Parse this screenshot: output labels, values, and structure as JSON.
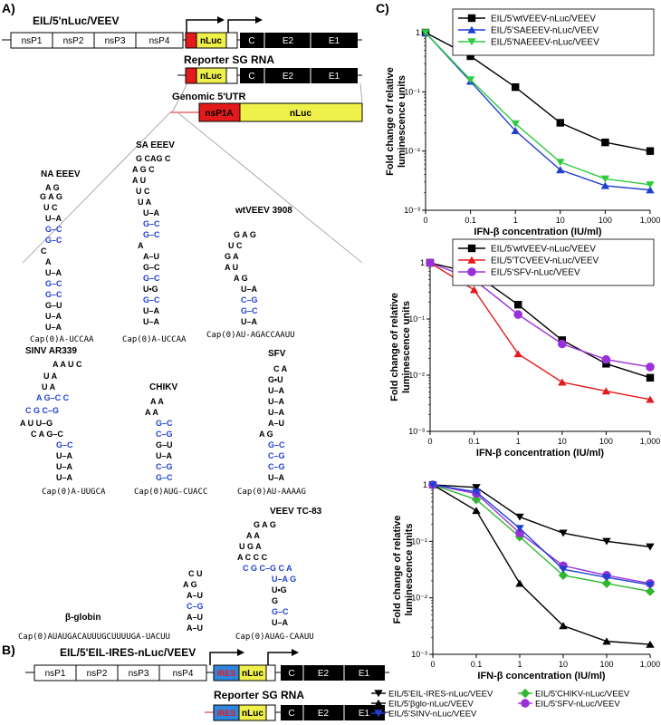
{
  "panels": {
    "a": "A)",
    "b": "B)",
    "c": "C)"
  },
  "panel_a": {
    "construct_title": "EIL/5'nLuc/VEEV",
    "genes": [
      "nsP1",
      "nsP2",
      "nsP3",
      "nsP4"
    ],
    "reporter": "nLuc",
    "structural": [
      "C",
      "E2",
      "E1"
    ],
    "sg_title": "Reporter SG RNA",
    "utr_title": "Genomic 5'UTR",
    "utr_boxes": [
      "nsP1A",
      "nLuc"
    ],
    "structures": [
      {
        "name": "NA EEEV",
        "cap": "Cap(0)A-UCCAA"
      },
      {
        "name": "SA EEEV",
        "cap": "Cap(0)A-UCCAA"
      },
      {
        "name": "wtVEEV 3908",
        "cap": "Cap(0)AU-AGACCAAUU"
      },
      {
        "name": "SINV AR339",
        "cap": "Cap(0)A-UUGCA"
      },
      {
        "name": "CHIKV",
        "cap": "Cap(0)AUG-CUACC"
      },
      {
        "name": "SFV",
        "cap": "Cap(0)AU-AAAAG"
      },
      {
        "name": "VEEV TC-83",
        "cap": "Cap(0)AUAG-CAAUU"
      },
      {
        "name": "β-globin",
        "cap": "Cap(0)AUAUGACAUUUGCUUUUGA-UACUU"
      }
    ]
  },
  "panel_b": {
    "construct_title": "EIL/5'EIL-IRES-nLuc/VEEV",
    "genes": [
      "nsP1",
      "nsP2",
      "nsP3",
      "nsP4"
    ],
    "ires": "IRES",
    "reporter": "nLuc",
    "structural": [
      "C",
      "E2",
      "E1"
    ],
    "sg_title": "Reporter SG RNA"
  },
  "colors": {
    "nsp_red": "#e31a1c",
    "nluc_yellow": "#f0f04a",
    "ires_blue": "#2e86de",
    "black": "#000000"
  },
  "chart_data": [
    {
      "type": "line",
      "ylabel": "Fold change of relative luminescence units",
      "xlabel": "IFN-β concentration (IU/ml)",
      "categories": [
        "0",
        "0.1",
        "1",
        "10",
        "100",
        "1,000"
      ],
      "y_scale": "log",
      "ylim": [
        0.001,
        1
      ],
      "y_ticks": [
        "1",
        "10⁻¹",
        "10⁻²",
        "10⁻³"
      ],
      "legend": "top-right",
      "series": [
        {
          "name": "EIL/5'wtVEEV-nLuc/VEEV",
          "color": "#000000",
          "marker": "square",
          "values": [
            1,
            0.4,
            0.12,
            0.03,
            0.014,
            0.01
          ]
        },
        {
          "name": "EIL/5'SAEEEV-nLuc/VEEV",
          "color": "#1f3fd1",
          "marker": "triangle-up",
          "values": [
            1,
            0.15,
            0.022,
            0.0048,
            0.0026,
            0.0022
          ]
        },
        {
          "name": "EIL/5'NAEEEV-nLuc/VEEV",
          "color": "#2ecc40",
          "marker": "triangle-down",
          "values": [
            1,
            0.16,
            0.029,
            0.0065,
            0.0034,
            0.0027
          ]
        }
      ]
    },
    {
      "type": "line",
      "ylabel": "Fold change of relative luminescence units",
      "xlabel": "IFN-β concentration (IU/ml)",
      "categories": [
        "0",
        "0.1",
        "1",
        "10",
        "100",
        "1,000"
      ],
      "y_scale": "log",
      "ylim": [
        0.001,
        1
      ],
      "y_ticks": [
        "1",
        "10⁻¹",
        "10⁻²",
        "10⁻³"
      ],
      "legend": "top-right",
      "series": [
        {
          "name": "EIL/5'wtVEEV-nLuc/VEEV",
          "color": "#000000",
          "marker": "square",
          "values": [
            1,
            0.65,
            0.18,
            0.042,
            0.016,
            0.009
          ]
        },
        {
          "name": "EIL/5'TCVEEV-nLuc/VEEV",
          "color": "#e31a1c",
          "marker": "triangle-up",
          "values": [
            1,
            0.33,
            0.024,
            0.0075,
            0.0052,
            0.0037
          ]
        },
        {
          "name": "EIL/5'SFV-nLuc/VEEV",
          "color": "#9b30d9",
          "marker": "circle",
          "values": [
            1,
            0.5,
            0.12,
            0.036,
            0.019,
            0.014
          ]
        }
      ]
    },
    {
      "type": "line",
      "ylabel": "Fold change of relative luminescence units",
      "xlabel": "IFN-β concentration (IU/ml)",
      "categories": [
        "0",
        "0.1",
        "1",
        "10",
        "100",
        "1,000"
      ],
      "y_scale": "log",
      "ylim": [
        0.001,
        1
      ],
      "y_ticks": [
        "1",
        "10⁻¹",
        "10⁻²",
        "10⁻³"
      ],
      "legend": "bottom",
      "series": [
        {
          "name": "EIL/5'EIL-IRES-nLuc/VEEV",
          "color": "#000000",
          "marker": "triangle-down",
          "values": [
            1,
            0.9,
            0.27,
            0.14,
            0.1,
            0.08
          ]
        },
        {
          "name": "EIL/5'CHIKV-nLuc/VEEV",
          "color": "#2eb82e",
          "marker": "diamond",
          "values": [
            1,
            0.55,
            0.12,
            0.025,
            0.018,
            0.013
          ]
        },
        {
          "name": "EIL/5'βglo-nLuc/VEEV",
          "color": "#000000",
          "marker": "triangle-up",
          "values": [
            1,
            0.35,
            0.018,
            0.0032,
            0.0017,
            0.0015
          ]
        },
        {
          "name": "EIL/5'SFV-nLuc/VEEV",
          "color": "#9b30d9",
          "marker": "circle",
          "values": [
            1,
            0.7,
            0.14,
            0.037,
            0.025,
            0.018
          ]
        },
        {
          "name": "EIL/5'SINV-nLuc/VEEV",
          "color": "#1f3fd1",
          "marker": "triangle-down",
          "values": [
            1,
            0.75,
            0.17,
            0.032,
            0.023,
            0.017
          ]
        }
      ]
    }
  ]
}
